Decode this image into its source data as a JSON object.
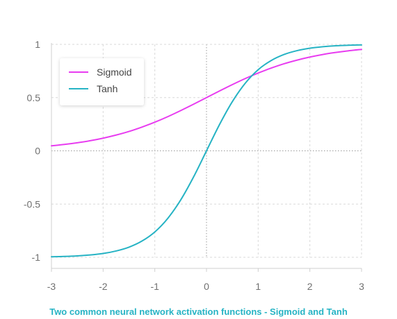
{
  "chart_data": {
    "type": "line",
    "caption": "Two common neural network activation functions - Sigmoid and Tanh",
    "x": [
      -3,
      -2.75,
      -2.5,
      -2.25,
      -2,
      -1.75,
      -1.5,
      -1.25,
      -1,
      -0.75,
      -0.5,
      -0.25,
      0,
      0.25,
      0.5,
      0.75,
      1,
      1.25,
      1.5,
      1.75,
      2,
      2.25,
      2.5,
      2.75,
      3
    ],
    "series": [
      {
        "name": "Sigmoid",
        "color": "#e83cf0",
        "values": [
          0.047,
          0.06,
          0.076,
          0.095,
          0.119,
          0.148,
          0.182,
          0.223,
          0.269,
          0.321,
          0.378,
          0.438,
          0.5,
          0.562,
          0.622,
          0.679,
          0.731,
          0.777,
          0.818,
          0.852,
          0.881,
          0.905,
          0.924,
          0.94,
          0.953
        ]
      },
      {
        "name": "Tanh",
        "color": "#26b3c4",
        "values": [
          -0.995,
          -0.992,
          -0.987,
          -0.978,
          -0.964,
          -0.941,
          -0.905,
          -0.848,
          -0.762,
          -0.635,
          -0.462,
          -0.245,
          0,
          0.245,
          0.462,
          0.635,
          0.762,
          0.848,
          0.905,
          0.941,
          0.964,
          0.978,
          0.987,
          0.992,
          0.995
        ]
      }
    ],
    "xticks": [
      "-3",
      "-2",
      "-1",
      "0",
      "1",
      "2",
      "3"
    ],
    "yticks": [
      "1",
      "0.5",
      "0",
      "-0.5",
      "-1"
    ],
    "xlim": [
      -3,
      3
    ],
    "ylim": [
      -1,
      1
    ],
    "grid": true,
    "legend_position": "top-left",
    "caption_color": "#26b3c4",
    "grid_color": "#d9d9d9",
    "zero_line_color": "#9a9a9a"
  }
}
